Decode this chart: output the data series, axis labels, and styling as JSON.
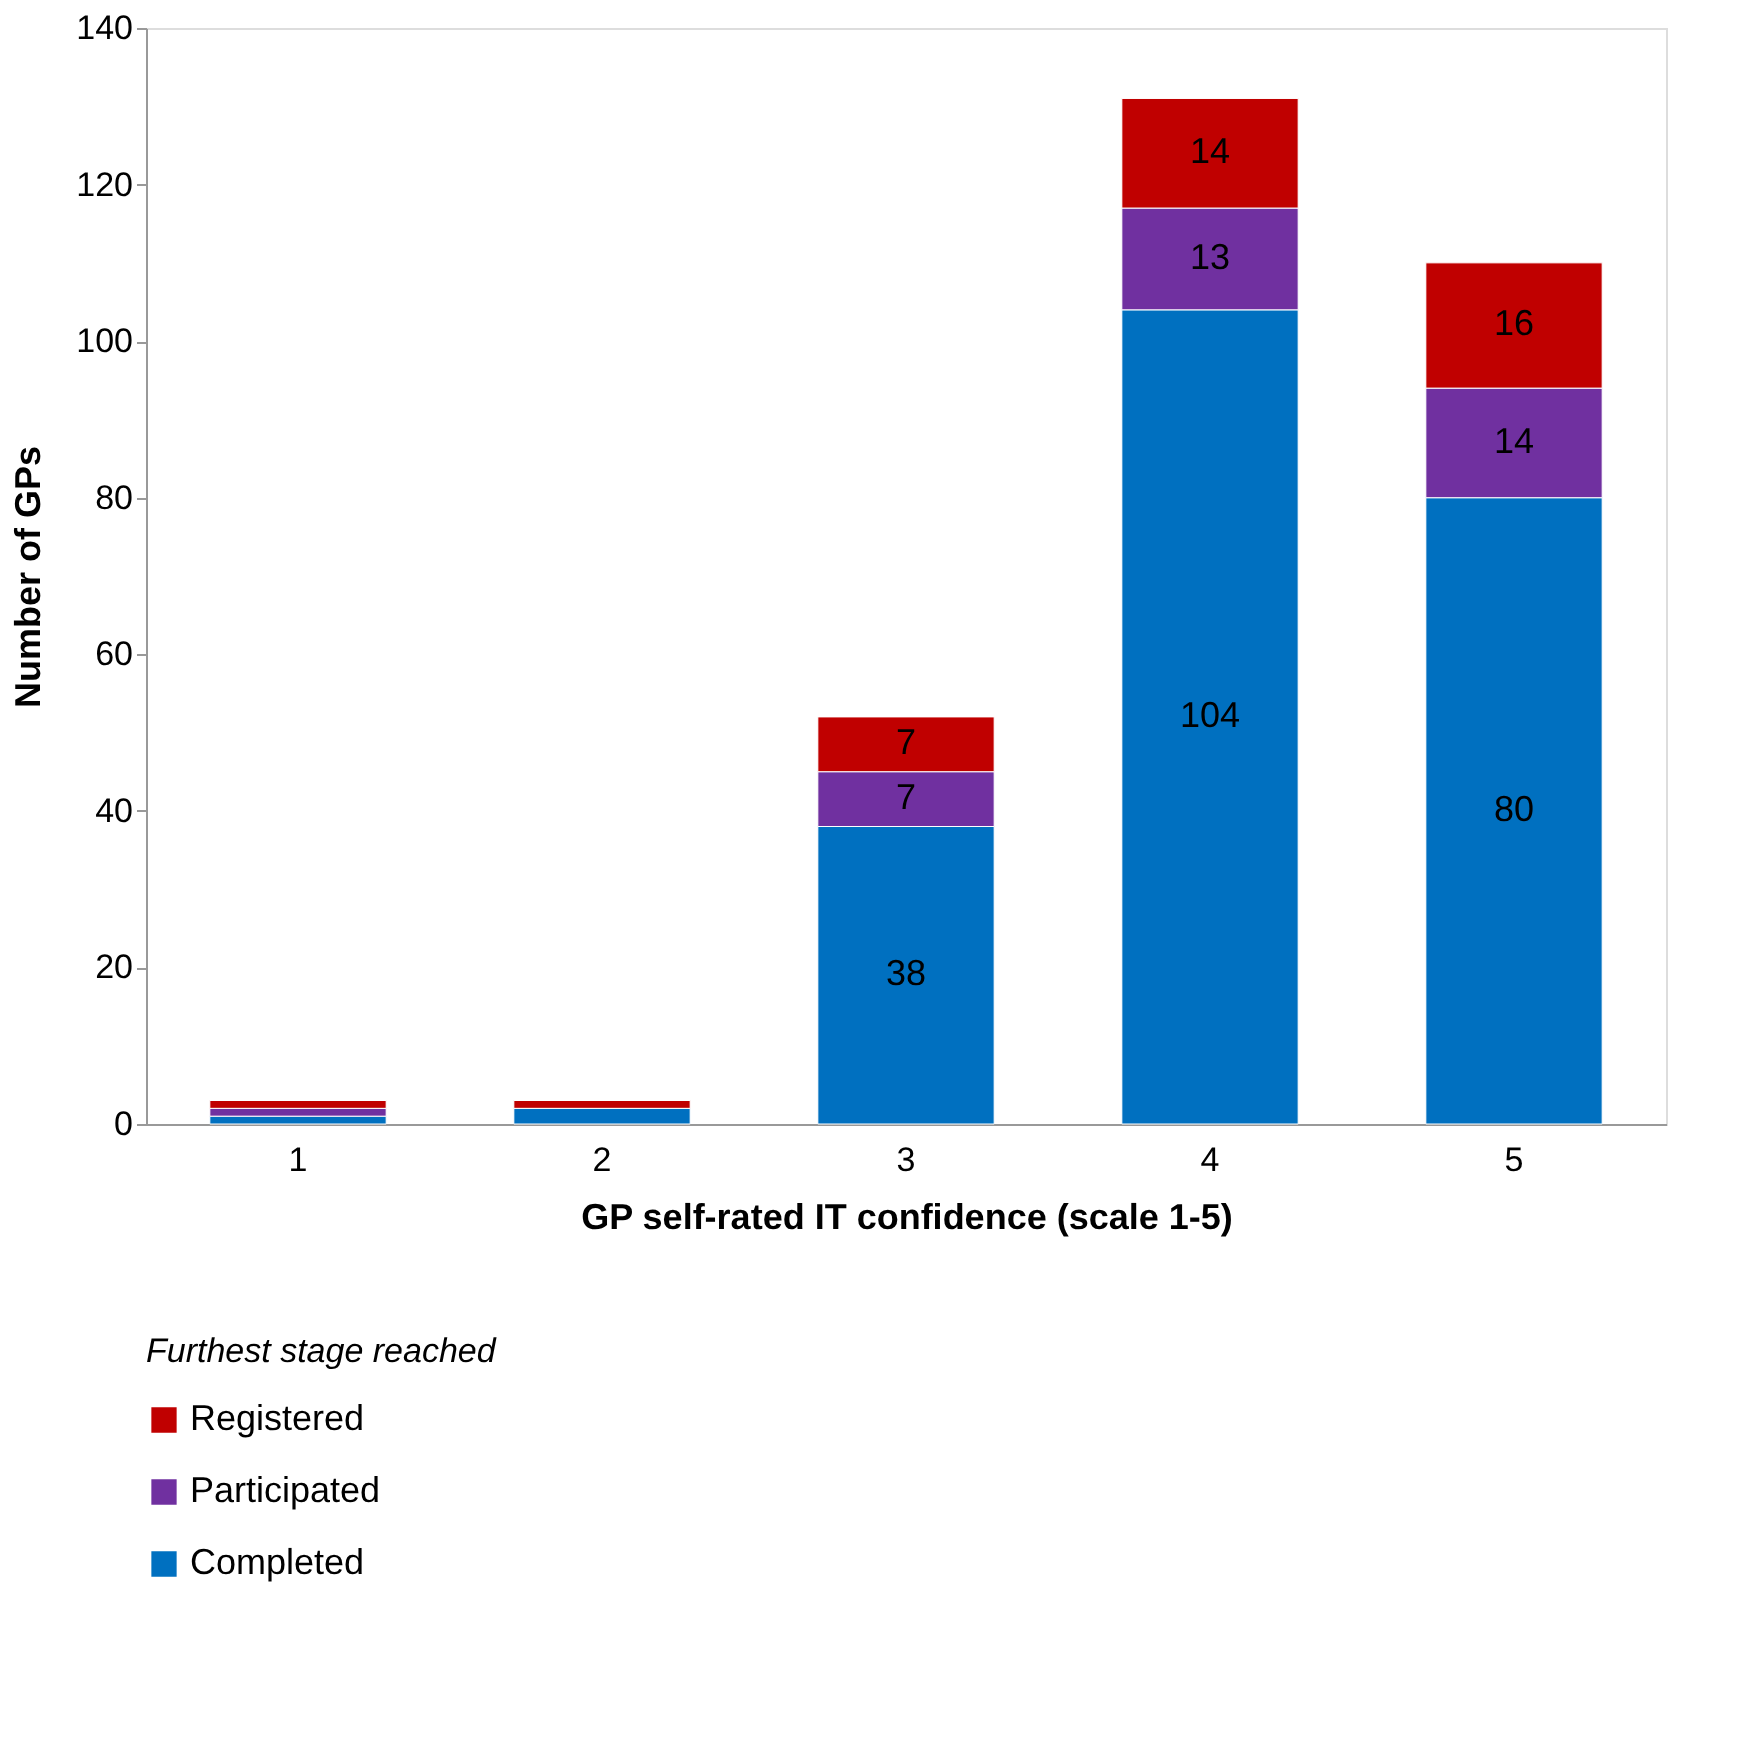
{
  "chart_data": {
    "type": "bar",
    "stacked": true,
    "xlabel": "GP self-rated IT confidence (scale 1-5)",
    "ylabel": "Number of GPs",
    "legend_title": "Furthest stage reached",
    "categories": [
      "1",
      "2",
      "3",
      "4",
      "5"
    ],
    "series": [
      {
        "name": "Completed",
        "color": "#0070c0",
        "values": [
          1,
          2,
          38,
          104,
          80
        ],
        "value_labels": [
          null,
          null,
          "38",
          "104",
          "80"
        ]
      },
      {
        "name": "Participated",
        "color": "#7030a0",
        "values": [
          1,
          0,
          7,
          13,
          14
        ],
        "value_labels": [
          null,
          null,
          "7",
          "13",
          "14"
        ]
      },
      {
        "name": "Registered",
        "color": "#c00000",
        "values": [
          1,
          1,
          7,
          14,
          16
        ],
        "value_labels": [
          null,
          null,
          "7",
          "14",
          "16"
        ]
      }
    ],
    "ylim": [
      0,
      140
    ],
    "yticks": [
      0,
      20,
      40,
      60,
      80,
      100,
      120,
      140
    ],
    "grid": false,
    "legend": "bottom"
  }
}
